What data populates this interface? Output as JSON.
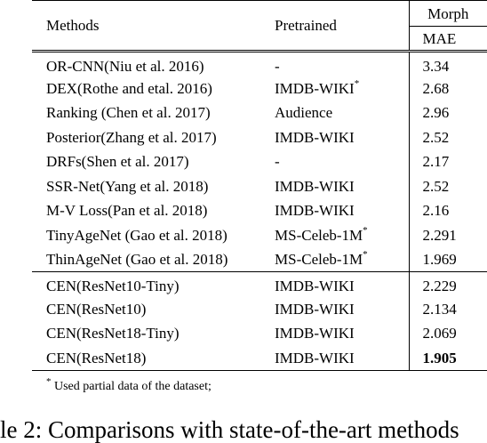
{
  "table": {
    "headers": {
      "methods": "Methods",
      "pretrained": "Pretrained",
      "dataset": "Morph",
      "metric": "MAE"
    },
    "group1": [
      {
        "method": "OR-CNN(Niu et al. 2016)",
        "pretrained": "-",
        "footnote_mark": "",
        "mae": "3.34",
        "best": false
      },
      {
        "method": "DEX(Rothe and etal. 2016)",
        "pretrained": "IMDB-WIKI",
        "footnote_mark": "*",
        "mae": "2.68",
        "best": false
      },
      {
        "method": "Ranking (Chen et al. 2017)",
        "pretrained": "Audience",
        "footnote_mark": "",
        "mae": "2.96",
        "best": false
      },
      {
        "method": "Posterior(Zhang et al. 2017)",
        "pretrained": "IMDB-WIKI",
        "footnote_mark": "",
        "mae": "2.52",
        "best": false
      },
      {
        "method": "DRFs(Shen et al. 2017)",
        "pretrained": "-",
        "footnote_mark": "",
        "mae": "2.17",
        "best": false
      },
      {
        "method": "SSR-Net(Yang et al. 2018)",
        "pretrained": "IMDB-WIKI",
        "footnote_mark": "",
        "mae": "2.52",
        "best": false
      },
      {
        "method": "M-V Loss(Pan et al. 2018)",
        "pretrained": "IMDB-WIKI",
        "footnote_mark": "",
        "mae": "2.16",
        "best": false
      },
      {
        "method": "TinyAgeNet (Gao et al. 2018)",
        "pretrained": "MS-Celeb-1M",
        "footnote_mark": "*",
        "mae": "2.291",
        "best": false
      },
      {
        "method": "ThinAgeNet (Gao et al. 2018)",
        "pretrained": "MS-Celeb-1M",
        "footnote_mark": "*",
        "mae": "1.969",
        "best": false
      }
    ],
    "group2": [
      {
        "method": "CEN(ResNet10-Tiny)",
        "pretrained": "IMDB-WIKI",
        "footnote_mark": "",
        "mae": "2.229",
        "best": false
      },
      {
        "method": "CEN(ResNet10)",
        "pretrained": "IMDB-WIKI",
        "footnote_mark": "",
        "mae": "2.134",
        "best": false
      },
      {
        "method": "CEN(ResNet18-Tiny)",
        "pretrained": "IMDB-WIKI",
        "footnote_mark": "",
        "mae": "2.069",
        "best": false
      },
      {
        "method": "CEN(ResNet18)",
        "pretrained": "IMDB-WIKI",
        "footnote_mark": "",
        "mae": "1.905",
        "best": true
      }
    ]
  },
  "footnote": {
    "mark": "*",
    "text": "Used partial data of the dataset;"
  },
  "caption": "le 2: Comparisons with state-of-the-art methods"
}
